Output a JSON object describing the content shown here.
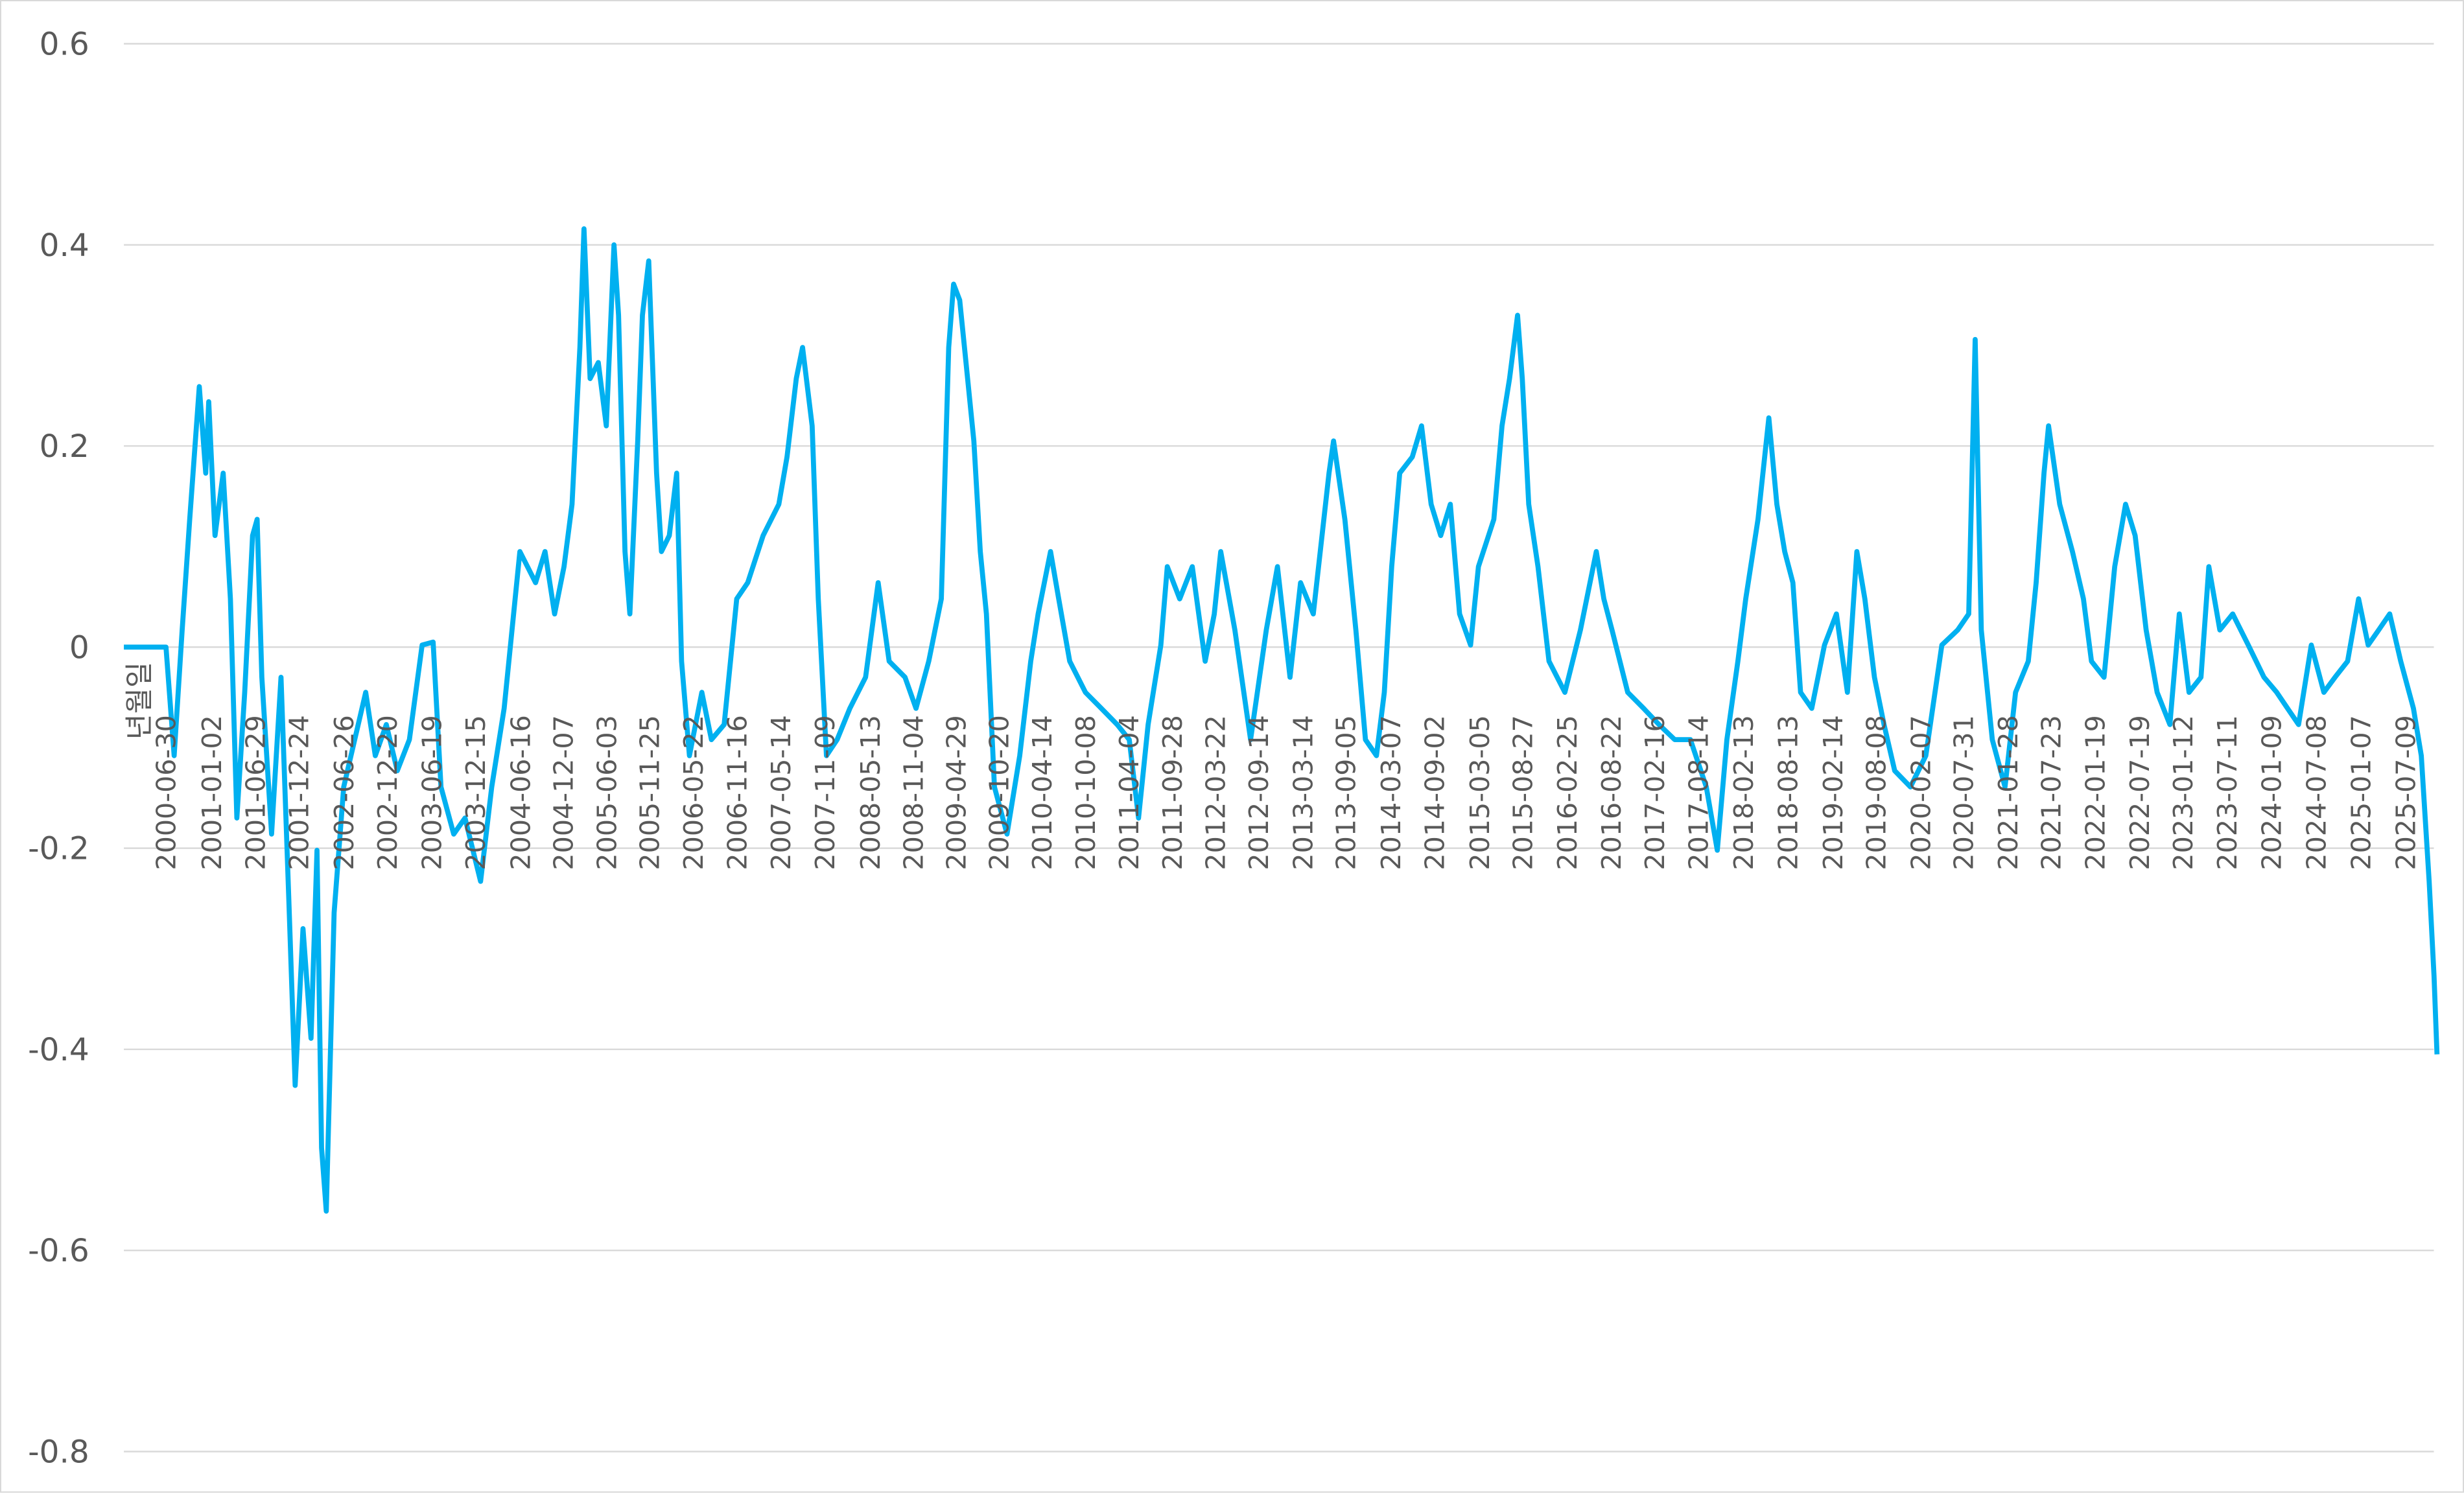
{
  "chart_data": {
    "type": "line",
    "title": "",
    "xlabel": "년월일",
    "ylabel": "",
    "ylim": [
      -0.8,
      0.6
    ],
    "yticks": [
      "0.6",
      "0.4",
      "0.2",
      "0",
      "-0.2",
      "-0.4",
      "-0.6",
      "-0.8"
    ],
    "ytick_values": [
      0.6,
      0.4,
      0.2,
      0,
      -0.2,
      -0.4,
      -0.6,
      -0.8
    ],
    "grid": true,
    "legend": "none",
    "line_color": "#00b0f0",
    "grid_color": "#d9d9d9",
    "text_color": "#595959",
    "xticks": [
      "2000-06-30",
      "2001-01-02",
      "2001-06-29",
      "2001-12-24",
      "2002-06-26",
      "2002-12-20",
      "2003-06-19",
      "2003-12-15",
      "2004-06-16",
      "2004-12-07",
      "2005-06-03",
      "2005-11-25",
      "2006-05-22",
      "2006-11-16",
      "2007-05-14",
      "2007-11-09",
      "2008-05-13",
      "2008-11-04",
      "2009-04-29",
      "2009-10-20",
      "2010-04-14",
      "2010-10-08",
      "2011-04-04",
      "2011-09-28",
      "2012-03-22",
      "2012-09-14",
      "2013-03-14",
      "2013-09-05",
      "2014-03-07",
      "2014-09-02",
      "2015-03-05",
      "2015-08-27",
      "2016-02-25",
      "2016-08-22",
      "2017-02-16",
      "2017-08-14",
      "2018-02-13",
      "2018-08-13",
      "2019-02-14",
      "2019-08-08",
      "2020-02-07",
      "2020-07-31",
      "2021-01-28",
      "2021-07-23",
      "2022-01-19",
      "2022-07-19",
      "2023-01-12",
      "2023-07-11",
      "2024-01-09",
      "2024-07-08",
      "2025-01-07",
      "2025-07-09"
    ],
    "series": [
      {
        "x": [
          "2000-01-10",
          "2000-06-30",
          "2000-08-02",
          "2000-09-04",
          "2000-10-05",
          "2000-11-13",
          "2000-12-09",
          "2000-12-21",
          "2001-01-16",
          "2001-02-18",
          "2001-03-20",
          "2001-04-15",
          "2001-05-17",
          "2001-06-18",
          "2001-07-07",
          "2001-07-26",
          "2001-09-04",
          "2001-10-12",
          "2001-11-13",
          "2001-12-09",
          "2002-01-10",
          "2002-02-12",
          "2002-03-08",
          "2002-03-27",
          "2002-04-15",
          "2002-05-17",
          "2002-06-25",
          "2002-08-09",
          "2002-09-23",
          "2002-11-01",
          "2002-12-16",
          "2003-01-30",
          "2003-03-20",
          "2003-05-11",
          "2003-06-25",
          "2003-07-27",
          "2003-09-17",
          "2003-11-02",
          "2004-01-05",
          "2004-02-19",
          "2004-04-10",
          "2004-06-13",
          "2004-08-16",
          "2004-09-24",
          "2004-11-02",
          "2004-12-10",
          "2005-01-12",
          "2005-02-13",
          "2005-03-02",
          "2005-03-27",
          "2005-04-29",
          "2005-06-01",
          "2005-07-02",
          "2005-07-21",
          "2005-08-16",
          "2005-09-05",
          "2005-10-07",
          "2005-10-26",
          "2005-11-21",
          "2005-12-23",
          "2006-01-12",
          "2006-02-13",
          "2006-03-15",
          "2006-04-04",
          "2006-05-06",
          "2006-06-26",
          "2006-08-04",
          "2006-09-25",
          "2006-11-15",
          "2006-12-30",
          "2007-03-03",
          "2007-05-06",
          "2007-06-08",
          "2007-07-16",
          "2007-08-11",
          "2007-09-19",
          "2007-10-14",
          "2007-11-16",
          "2007-12-30",
          "2008-02-20",
          "2008-04-24",
          "2008-06-14",
          "2008-07-29",
          "2008-10-02",
          "2008-11-16",
          "2009-01-07",
          "2009-02-27",
          "2009-03-29",
          "2009-04-18",
          "2009-05-13",
          "2009-06-08",
          "2009-07-10",
          "2009-08-05",
          "2009-08-30",
          "2009-10-02",
          "2009-11-22",
          "2010-01-13",
          "2010-02-27",
          "2010-03-29",
          "2010-05-19",
          "2010-06-21",
          "2010-08-05",
          "2010-10-08",
          "2010-12-12",
          "2011-02-15",
          "2011-04-05",
          "2011-05-13",
          "2011-06-21",
          "2011-08-12",
          "2011-09-07",
          "2011-10-28",
          "2011-12-18",
          "2012-02-09",
          "2012-03-17",
          "2012-04-12",
          "2012-06-09",
          "2012-08-12",
          "2012-10-15",
          "2012-11-30",
          "2013-01-20",
          "2013-03-04",
          "2013-04-25",
          "2013-06-28",
          "2013-07-17",
          "2013-09-01",
          "2013-10-16",
          "2013-11-24",
          "2014-01-08",
          "2014-02-09",
          "2014-03-11",
          "2014-04-13",
          "2014-06-03",
          "2014-07-11",
          "2014-08-19",
          "2014-09-27",
          "2014-11-05",
          "2014-12-13",
          "2015-01-27",
          "2015-02-28",
          "2015-05-02",
          "2015-06-04",
          "2015-07-05",
          "2015-08-07",
          "2015-08-26",
          "2015-09-21",
          "2015-10-29",
          "2015-12-13",
          "2016-02-16",
          "2016-04-19",
          "2016-06-23",
          "2016-07-24",
          "2016-08-26",
          "2016-10-29",
          "2017-01-02",
          "2017-03-06",
          "2017-05-09",
          "2017-07-12",
          "2017-09-15",
          "2017-10-30",
          "2017-12-08",
          "2018-01-22",
          "2018-02-23",
          "2018-04-14",
          "2018-05-28",
          "2018-06-30",
          "2018-08-01",
          "2018-09-03",
          "2018-10-05",
          "2018-11-19",
          "2019-01-10",
          "2019-02-28",
          "2019-04-14",
          "2019-05-22",
          "2019-06-24",
          "2019-08-02",
          "2019-09-10",
          "2019-10-24",
          "2019-12-27",
          "2020-02-28",
          "2020-05-03",
          "2020-07-07",
          "2020-08-21",
          "2020-09-16",
          "2020-10-11",
          "2020-11-25",
          "2021-01-16",
          "2021-02-28",
          "2021-04-21",
          "2021-05-23",
          "2021-06-24",
          "2021-07-13",
          "2021-08-27",
          "2021-10-18",
          "2021-12-02",
          "2022-01-04",
          "2022-02-24",
          "2022-04-09",
          "2022-05-23",
          "2022-07-01",
          "2022-08-15",
          "2022-09-29",
          "2022-11-20",
          "2022-12-28",
          "2023-02-06",
          "2023-03-27",
          "2023-04-28",
          "2023-06-12",
          "2023-08-03",
          "2023-10-06",
          "2023-12-09",
          "2024-01-30",
          "2024-03-14",
          "2024-04-28",
          "2024-06-19",
          "2024-08-09",
          "2024-09-24",
          "2024-11-14",
          "2024-12-29",
          "2025-02-06",
          "2025-03-21",
          "2025-05-05",
          "2025-06-19",
          "2025-08-10",
          "2025-09-11",
          "2025-10-13",
          "2025-11-02",
          "2025-11-14"
        ],
        "y": [
          0,
          0,
          -0.108,
          0.017,
          0.127,
          0.259,
          0.173,
          0.244,
          0.111,
          0.173,
          0.048,
          -0.17,
          -0.045,
          0.111,
          0.127,
          -0.03,
          -0.186,
          -0.03,
          -0.248,
          -0.436,
          -0.28,
          -0.389,
          -0.202,
          -0.498,
          -0.561,
          -0.264,
          -0.139,
          -0.092,
          -0.045,
          -0.108,
          -0.077,
          -0.123,
          -0.092,
          0.002,
          0.005,
          -0.139,
          -0.186,
          -0.17,
          -0.233,
          -0.139,
          -0.061,
          0.095,
          0.064,
          0.095,
          0.033,
          0.08,
          0.142,
          0.298,
          0.416,
          0.267,
          0.283,
          0.22,
          0.4,
          0.33,
          0.095,
          0.033,
          0.205,
          0.33,
          0.384,
          0.173,
          0.095,
          0.111,
          0.173,
          -0.014,
          -0.108,
          -0.045,
          -0.092,
          -0.077,
          0.048,
          0.064,
          0.111,
          0.142,
          0.189,
          0.267,
          0.298,
          0.22,
          0.048,
          -0.108,
          -0.092,
          -0.061,
          -0.03,
          0.064,
          -0.014,
          -0.03,
          -0.061,
          -0.014,
          0.048,
          0.298,
          0.361,
          0.345,
          0.283,
          0.205,
          0.095,
          0.033,
          -0.139,
          -0.186,
          -0.108,
          -0.014,
          0.033,
          0.095,
          0.048,
          -0.014,
          -0.045,
          -0.061,
          -0.077,
          -0.092,
          -0.17,
          -0.077,
          0.002,
          0.08,
          0.048,
          0.08,
          -0.014,
          0.033,
          0.095,
          0.017,
          -0.092,
          0.017,
          0.08,
          -0.03,
          0.064,
          0.033,
          0.173,
          0.205,
          0.127,
          0.017,
          -0.092,
          -0.108,
          -0.045,
          0.08,
          0.173,
          0.189,
          0.22,
          0.142,
          0.111,
          0.142,
          0.033,
          0.002,
          0.08,
          0.127,
          0.22,
          0.267,
          0.33,
          0.267,
          0.142,
          0.08,
          -0.014,
          -0.045,
          0.017,
          0.095,
          0.048,
          0.017,
          -0.045,
          -0.061,
          -0.077,
          -0.092,
          -0.092,
          -0.139,
          -0.202,
          -0.092,
          -0.014,
          0.048,
          0.127,
          0.228,
          0.142,
          0.095,
          0.064,
          -0.045,
          -0.061,
          0.002,
          0.033,
          -0.045,
          0.095,
          0.048,
          -0.03,
          -0.077,
          -0.123,
          -0.139,
          -0.108,
          0.002,
          0.017,
          0.033,
          0.306,
          0.017,
          -0.092,
          -0.139,
          -0.045,
          -0.014,
          0.064,
          0.173,
          0.22,
          0.142,
          0.095,
          0.048,
          -0.014,
          -0.03,
          0.08,
          0.142,
          0.111,
          0.017,
          -0.045,
          -0.077,
          0.033,
          -0.045,
          -0.03,
          0.08,
          0.017,
          0.033,
          0.002,
          -0.03,
          -0.045,
          -0.061,
          -0.077,
          0.002,
          -0.045,
          -0.03,
          -0.014,
          0.048,
          0.002,
          0.017,
          0.033,
          -0.014,
          -0.061,
          -0.108,
          -0.233,
          -0.327,
          -0.405
        ]
      }
    ]
  }
}
